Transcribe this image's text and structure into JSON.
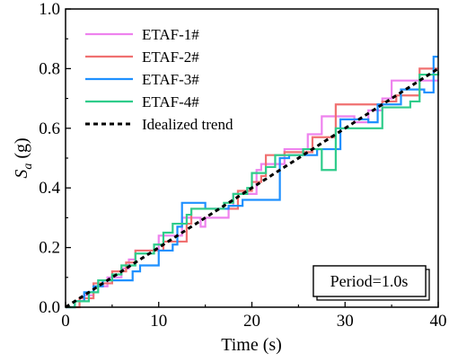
{
  "chart_data": {
    "type": "line",
    "title": "",
    "xlabel": "Time (s)",
    "ylabel_main": "S",
    "ylabel_sub": "a",
    "ylabel_unit": " (g)",
    "xlim": [
      0,
      40
    ],
    "ylim": [
      0,
      1.0
    ],
    "xticks": [
      0,
      10,
      20,
      30,
      40
    ],
    "yticks": [
      "0.0",
      "0.2",
      "0.4",
      "0.6",
      "0.8",
      "1.0"
    ],
    "grid": false,
    "legend_position": "top-left",
    "annotation": "Period=1.0s",
    "series": [
      {
        "name": "ETAF-1#",
        "color": "#ee82ee",
        "style": "step",
        "points": [
          [
            0,
            0
          ],
          [
            1,
            0.02
          ],
          [
            2,
            0.04
          ],
          [
            3,
            0.07
          ],
          [
            4.5,
            0.1
          ],
          [
            6,
            0.13
          ],
          [
            6.8,
            0.16
          ],
          [
            7.5,
            0.19
          ],
          [
            9.5,
            0.19
          ],
          [
            10,
            0.24
          ],
          [
            11,
            0.24
          ],
          [
            12.5,
            0.3
          ],
          [
            14.5,
            0.27
          ],
          [
            15,
            0.3
          ],
          [
            17.5,
            0.34
          ],
          [
            18,
            0.38
          ],
          [
            19.5,
            0.38
          ],
          [
            20.5,
            0.46
          ],
          [
            21,
            0.48
          ],
          [
            23.5,
            0.53
          ],
          [
            25.5,
            0.53
          ],
          [
            26,
            0.58
          ],
          [
            27.5,
            0.64
          ],
          [
            29,
            0.64
          ],
          [
            31,
            0.62
          ],
          [
            32.5,
            0.66
          ],
          [
            34,
            0.7
          ],
          [
            35,
            0.76
          ],
          [
            37.5,
            0.76
          ],
          [
            38.5,
            0.76
          ],
          [
            40,
            0.76
          ]
        ]
      },
      {
        "name": "ETAF-2#",
        "color": "#f07070",
        "style": "step",
        "points": [
          [
            0,
            0
          ],
          [
            1.5,
            0.03
          ],
          [
            3,
            0.08
          ],
          [
            5,
            0.12
          ],
          [
            6.5,
            0.15
          ],
          [
            7.5,
            0.19
          ],
          [
            9.5,
            0.19
          ],
          [
            10.5,
            0.22
          ],
          [
            13,
            0.28
          ],
          [
            13.5,
            0.33
          ],
          [
            17,
            0.33
          ],
          [
            18.5,
            0.39
          ],
          [
            20,
            0.42
          ],
          [
            21,
            0.44
          ],
          [
            21.5,
            0.51
          ],
          [
            23.5,
            0.52
          ],
          [
            25.5,
            0.52
          ],
          [
            26.5,
            0.57
          ],
          [
            29,
            0.68
          ],
          [
            32,
            0.68
          ],
          [
            34,
            0.69
          ],
          [
            35.5,
            0.71
          ],
          [
            38,
            0.8
          ],
          [
            40,
            0.8
          ]
        ]
      },
      {
        "name": "ETAF-3#",
        "color": "#1e90ff",
        "style": "step",
        "points": [
          [
            0,
            0
          ],
          [
            1,
            0.02
          ],
          [
            2,
            0.05
          ],
          [
            3,
            0.07
          ],
          [
            4,
            0.09
          ],
          [
            7,
            0.09
          ],
          [
            7.2,
            0.12
          ],
          [
            8,
            0.14
          ],
          [
            10,
            0.19
          ],
          [
            11.5,
            0.21
          ],
          [
            12,
            0.27
          ],
          [
            12.5,
            0.35
          ],
          [
            14.5,
            0.35
          ],
          [
            15,
            0.33
          ],
          [
            17.5,
            0.34
          ],
          [
            19,
            0.36
          ],
          [
            21,
            0.36
          ],
          [
            23,
            0.5
          ],
          [
            24,
            0.51
          ],
          [
            27,
            0.53
          ],
          [
            29.5,
            0.63
          ],
          [
            31,
            0.63
          ],
          [
            32.5,
            0.62
          ],
          [
            33.5,
            0.68
          ],
          [
            36,
            0.73
          ],
          [
            38,
            0.73
          ],
          [
            38.5,
            0.72
          ],
          [
            39.5,
            0.84
          ],
          [
            40,
            0.84
          ]
        ]
      },
      {
        "name": "ETAF-4#",
        "color": "#2ecc8a",
        "style": "step",
        "points": [
          [
            0,
            0
          ],
          [
            1,
            0.02
          ],
          [
            2.5,
            0.05
          ],
          [
            3.5,
            0.09
          ],
          [
            5,
            0.11
          ],
          [
            6,
            0.14
          ],
          [
            7.5,
            0.18
          ],
          [
            9.5,
            0.21
          ],
          [
            10.5,
            0.25
          ],
          [
            11.5,
            0.28
          ],
          [
            13,
            0.31
          ],
          [
            13.5,
            0.33
          ],
          [
            17,
            0.35
          ],
          [
            18,
            0.38
          ],
          [
            19.5,
            0.4
          ],
          [
            20,
            0.45
          ],
          [
            21.5,
            0.47
          ],
          [
            22.5,
            0.51
          ],
          [
            24.5,
            0.51
          ],
          [
            25.5,
            0.53
          ],
          [
            27.5,
            0.46
          ],
          [
            29,
            0.6
          ],
          [
            34,
            0.67
          ],
          [
            37,
            0.69
          ],
          [
            38,
            0.78
          ],
          [
            40,
            0.79
          ]
        ]
      },
      {
        "name": "Idealized trend",
        "color": "#000000",
        "style": "dashed",
        "points": [
          [
            0,
            0
          ],
          [
            40,
            0.8
          ]
        ]
      }
    ]
  }
}
